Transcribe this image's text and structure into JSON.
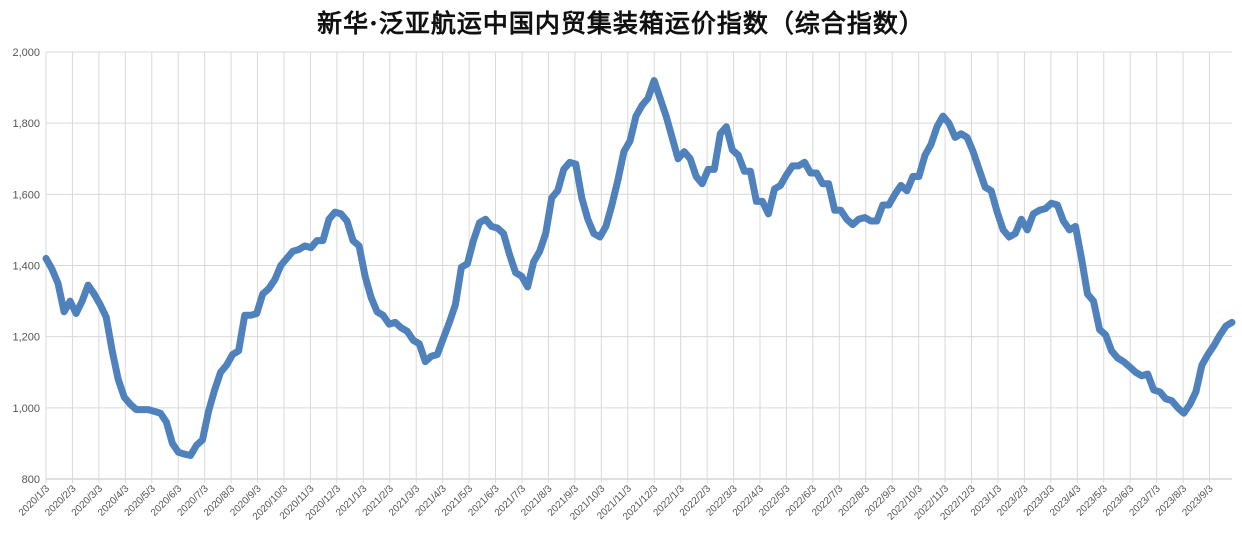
{
  "chart_data": {
    "type": "line",
    "title": "新华·泛亚航运中国内贸集装箱运价指数（综合指数）",
    "xlabel": "",
    "ylabel": "",
    "ylim": [
      800,
      2000
    ],
    "yticks": [
      800,
      1000,
      1200,
      1400,
      1600,
      1800,
      2000
    ],
    "yticklabels": [
      "800",
      "1,000",
      "1,200",
      "1,400",
      "1,600",
      "1,800",
      "2,000"
    ],
    "grid": true,
    "legend": "none",
    "line_color": "#4F81BD",
    "xticklabels": [
      "2020/1/3",
      "2020/2/3",
      "2020/3/3",
      "2020/4/3",
      "2020/5/3",
      "2020/6/3",
      "2020/7/3",
      "2020/8/3",
      "2020/9/3",
      "2020/10/3",
      "2020/11/3",
      "2020/12/3",
      "2021/1/3",
      "2021/2/3",
      "2021/3/3",
      "2021/4/3",
      "2021/5/3",
      "2021/6/3",
      "2021/7/3",
      "2021/8/3",
      "2021/9/3",
      "2021/10/3",
      "2021/11/3",
      "2021/12/3",
      "2022/1/3",
      "2022/2/3",
      "2022/3/3",
      "2022/4/3",
      "2022/5/3",
      "2022/6/3",
      "2022/7/3",
      "2022/8/3",
      "2022/9/3",
      "2022/10/3",
      "2022/11/3",
      "2022/12/3",
      "2023/1/3",
      "2023/2/3",
      "2023/3/3",
      "2023/4/3",
      "2023/5/3",
      "2023/6/3",
      "2023/7/3",
      "2023/8/3",
      "2023/9/3"
    ],
    "series": [
      {
        "values": [
          1420,
          1390,
          1350,
          1270,
          1300,
          1265,
          1300,
          1345,
          1320,
          1290,
          1255,
          1160,
          1080,
          1030,
          1010,
          995,
          995,
          995,
          990,
          985,
          960,
          900,
          875,
          870,
          866,
          895,
          910,
          990,
          1050,
          1100,
          1120,
          1150,
          1160,
          1260,
          1260,
          1265,
          1320,
          1335,
          1360,
          1400,
          1420,
          1440,
          1445,
          1455,
          1450,
          1470,
          1470,
          1530,
          1550,
          1545,
          1525,
          1470,
          1455,
          1370,
          1310,
          1270,
          1260,
          1235,
          1240,
          1225,
          1215,
          1190,
          1180,
          1130,
          1145,
          1150,
          1195,
          1240,
          1290,
          1395,
          1405,
          1470,
          1520,
          1530,
          1510,
          1505,
          1490,
          1430,
          1380,
          1370,
          1340,
          1410,
          1440,
          1490,
          1590,
          1610,
          1670,
          1690,
          1685,
          1590,
          1530,
          1490,
          1480,
          1510,
          1570,
          1640,
          1720,
          1750,
          1820,
          1850,
          1870,
          1920,
          1870,
          1820,
          1760,
          1700,
          1720,
          1700,
          1650,
          1630,
          1670,
          1670,
          1770,
          1790,
          1725,
          1710,
          1665,
          1665,
          1580,
          1580,
          1545,
          1615,
          1625,
          1655,
          1680,
          1680,
          1690,
          1660,
          1660,
          1630,
          1630,
          1555,
          1555,
          1530,
          1515,
          1530,
          1535,
          1525,
          1525,
          1570,
          1570,
          1600,
          1625,
          1610,
          1650,
          1650,
          1710,
          1740,
          1790,
          1820,
          1800,
          1760,
          1770,
          1760,
          1720,
          1670,
          1620,
          1610,
          1550,
          1500,
          1480,
          1490,
          1530,
          1500,
          1545,
          1555,
          1560,
          1575,
          1570,
          1525,
          1500,
          1510,
          1420,
          1320,
          1300,
          1220,
          1205,
          1160,
          1140,
          1130,
          1115,
          1100,
          1090,
          1095,
          1050,
          1045,
          1025,
          1020,
          1000,
          985,
          1010,
          1045,
          1120,
          1150,
          1175,
          1205,
          1230,
          1240
        ]
      }
    ]
  }
}
